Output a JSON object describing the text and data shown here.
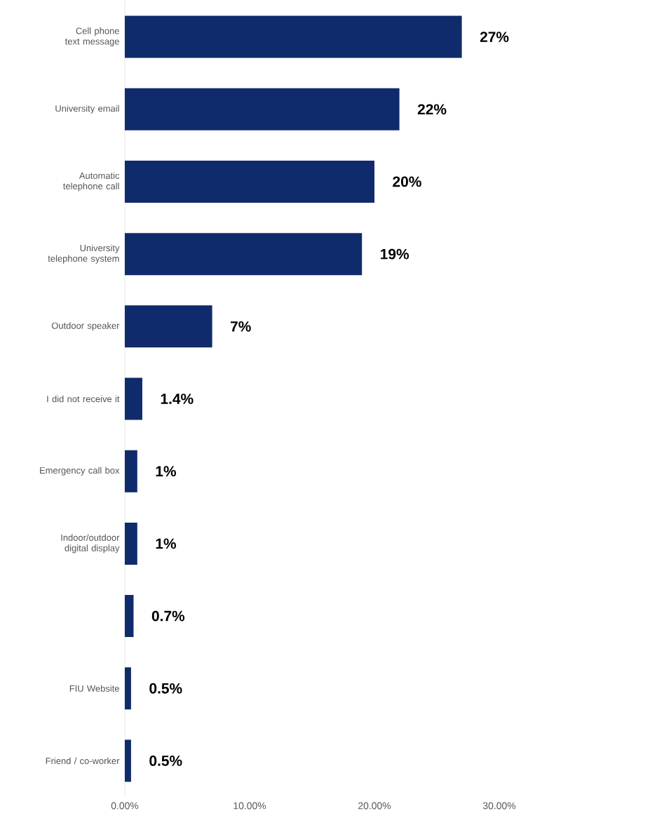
{
  "chart_data": {
    "type": "bar",
    "orientation": "horizontal",
    "categories": [
      "Cell phone text message",
      "University email",
      "Automatic telephone call",
      "University telephone system",
      "Outdoor speaker",
      "I did not receive it",
      "Emergency call box",
      "Indoor/outdoor digital display",
      null,
      "FIU Website",
      "Friend / co-worker"
    ],
    "values": [
      27,
      22,
      20,
      19,
      7,
      1.4,
      1,
      1,
      0.7,
      0.5,
      0.5
    ],
    "value_labels": [
      "27%",
      "22%",
      "20%",
      "19%",
      "7%",
      "1.4%",
      "1%",
      "1%",
      "0.7%",
      "0.5%",
      "0.5%"
    ],
    "color": "#0f2b6b",
    "xlim": [
      0,
      30
    ],
    "xticks": [
      {
        "value": 0,
        "label": "0.00%"
      },
      {
        "value": 10,
        "label": "10.00%"
      },
      {
        "value": 20,
        "label": "20.00%"
      },
      {
        "value": 30,
        "label": "30.00%"
      }
    ],
    "grid": false
  }
}
